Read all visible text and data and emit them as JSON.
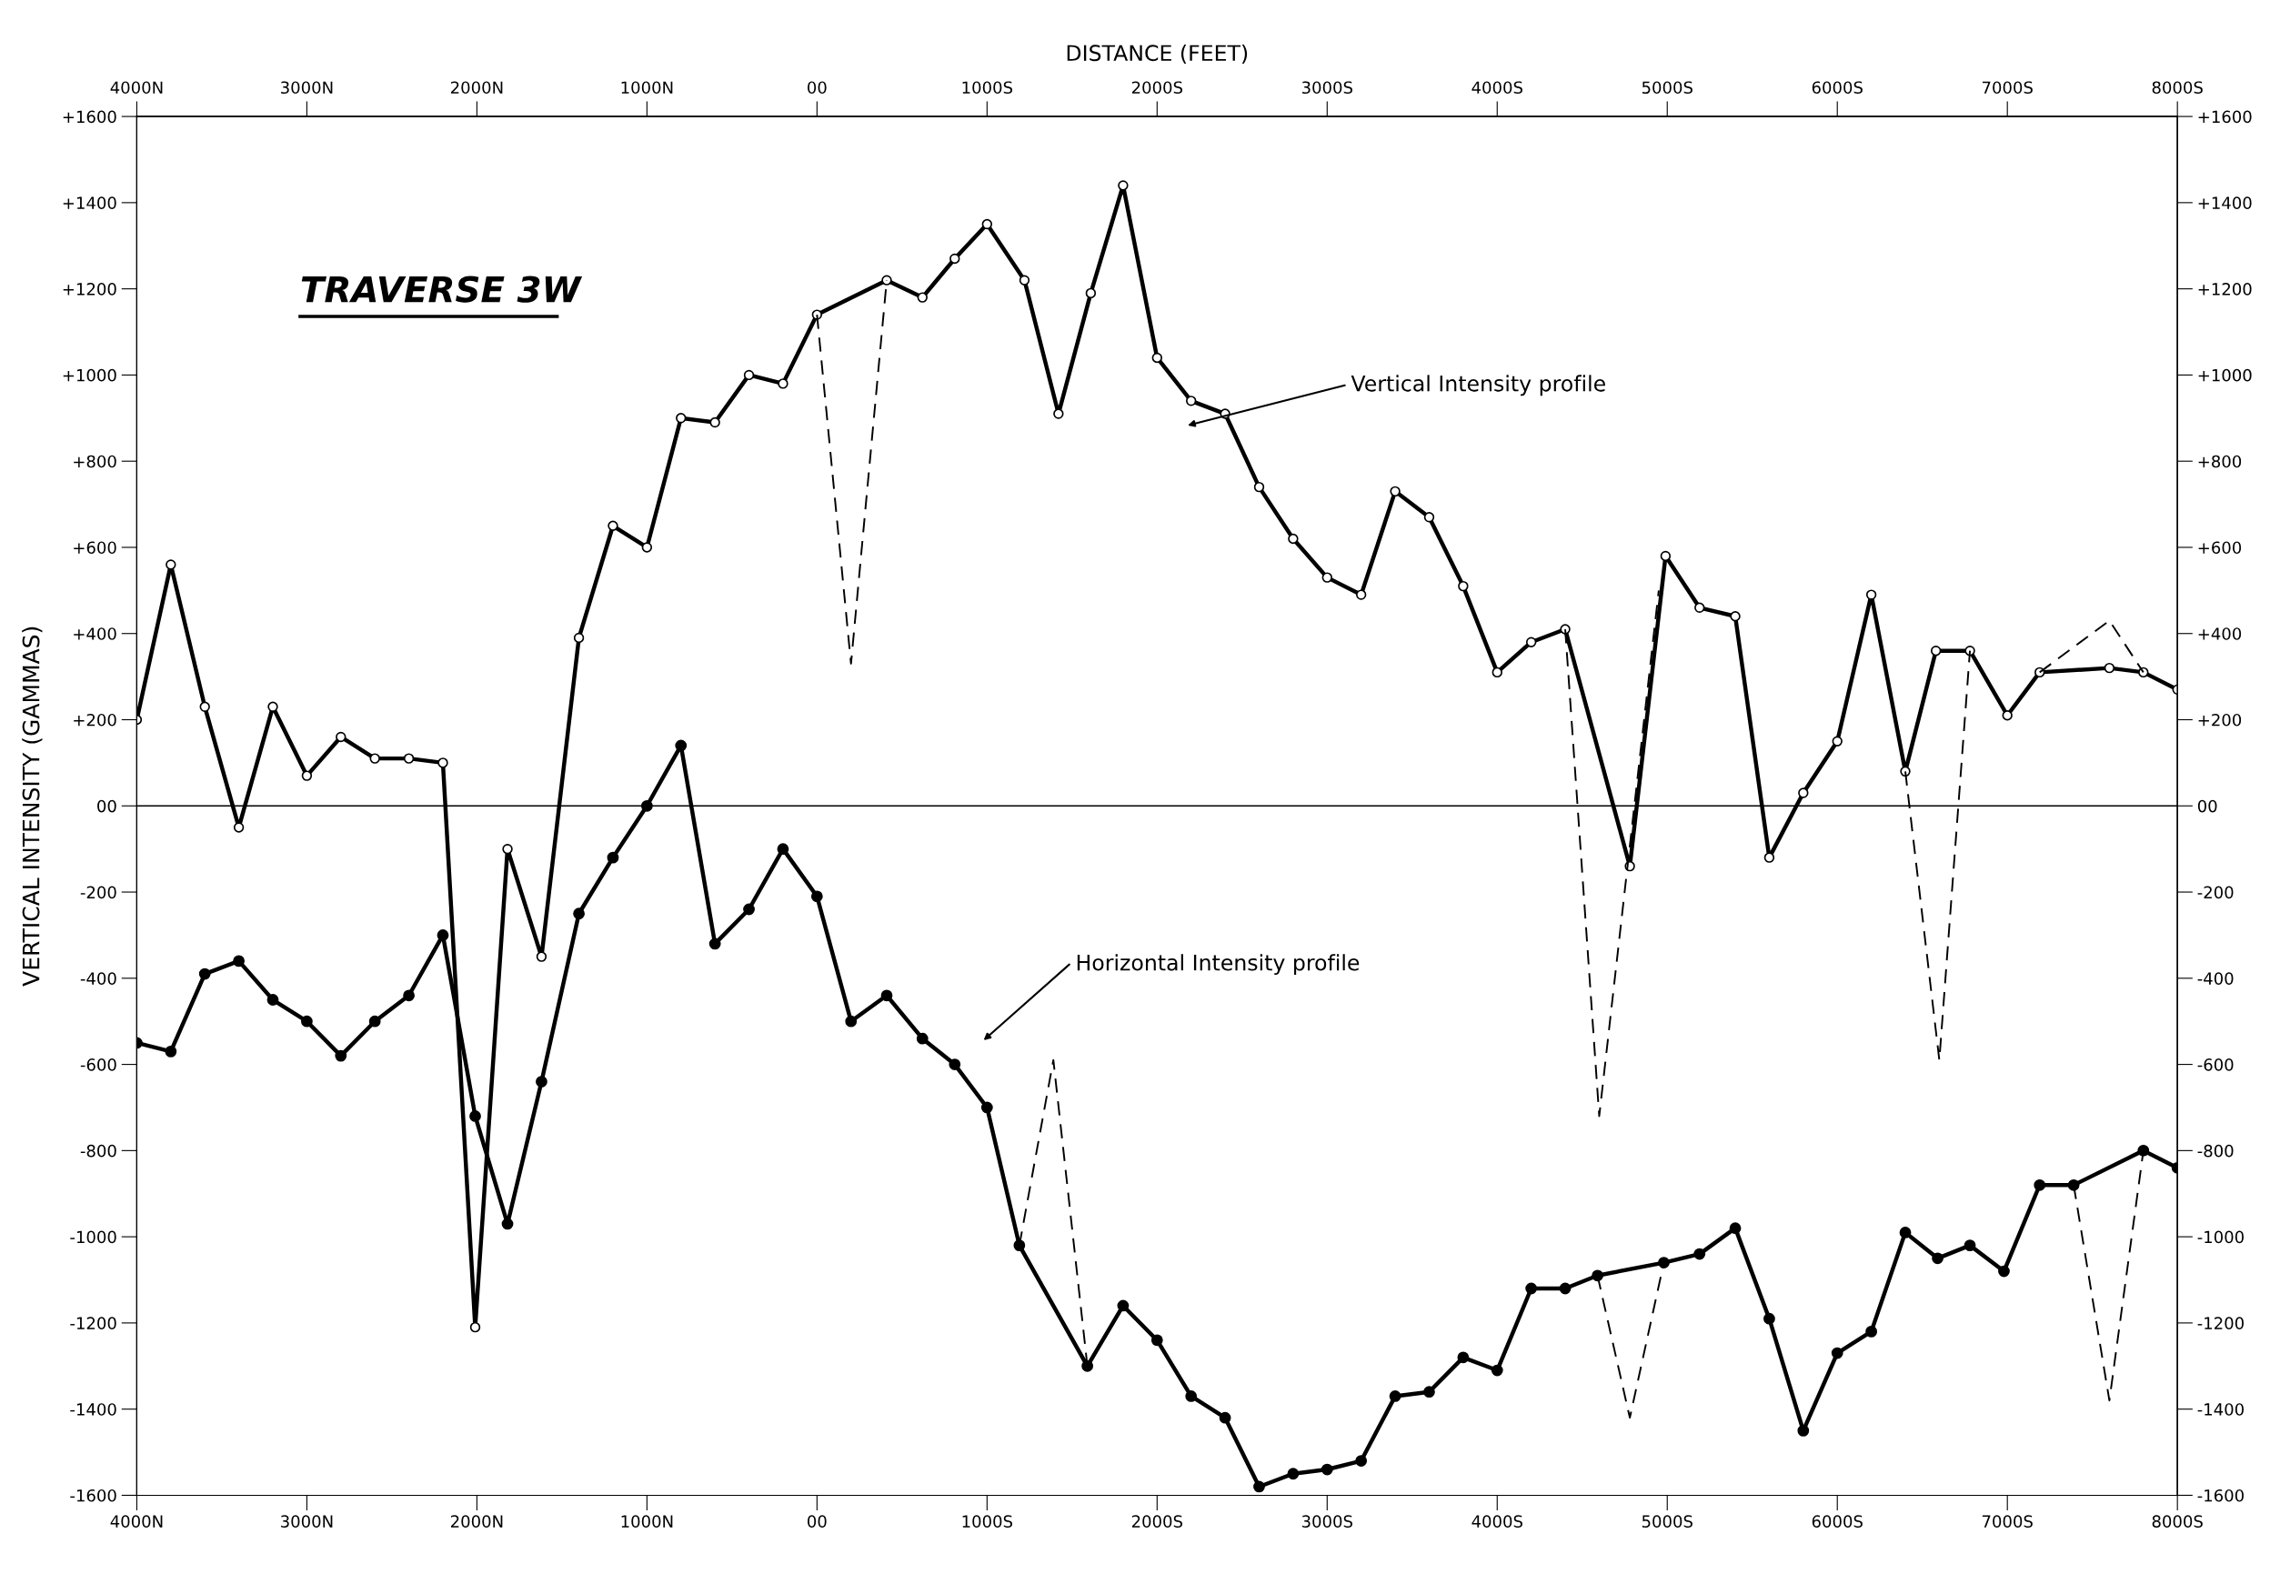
{
  "chart_data": {
    "type": "line",
    "title": "TRAVERSE 3W",
    "x2label": "DISTANCE (FEET)",
    "ylabel": "VERTICAL INTENSITY (GAMMAS)",
    "xlim": [
      -4000,
      8000
    ],
    "xticks": [
      {
        "value": -4000,
        "label": "4000N"
      },
      {
        "value": -3000,
        "label": "3000N"
      },
      {
        "value": -2000,
        "label": "2000N"
      },
      {
        "value": -1000,
        "label": "1000N"
      },
      {
        "value": 0,
        "label": "00"
      },
      {
        "value": 1000,
        "label": "1000S"
      },
      {
        "value": 2000,
        "label": "2000S"
      },
      {
        "value": 3000,
        "label": "3000S"
      },
      {
        "value": 4000,
        "label": "4000S"
      },
      {
        "value": 5000,
        "label": "5000S"
      },
      {
        "value": 6000,
        "label": "6000S"
      },
      {
        "value": 7000,
        "label": "7000S"
      },
      {
        "value": 8000,
        "label": "8000S"
      }
    ],
    "x2lim": [
      -4000,
      8000
    ],
    "x2ticks": [
      {
        "value": -4000,
        "label": "4000N"
      },
      {
        "value": -3000,
        "label": "3000N"
      },
      {
        "value": -2000,
        "label": "2000N"
      },
      {
        "value": -1000,
        "label": "1000N"
      },
      {
        "value": 0,
        "label": "00"
      },
      {
        "value": 1000,
        "label": "1000S"
      },
      {
        "value": 2000,
        "label": "2000S"
      },
      {
        "value": 3000,
        "label": "3000S"
      },
      {
        "value": 4000,
        "label": "4000S"
      },
      {
        "value": 5000,
        "label": "5000S"
      },
      {
        "value": 6000,
        "label": "6000S"
      },
      {
        "value": 7000,
        "label": "7000S"
      },
      {
        "value": 8000,
        "label": "8000S"
      }
    ],
    "ylim": [
      -1600,
      1600
    ],
    "yticks": [
      {
        "value": 1600,
        "label": "+1600"
      },
      {
        "value": 1400,
        "label": "+1400"
      },
      {
        "value": 1200,
        "label": "+1200"
      },
      {
        "value": 1000,
        "label": "+1000"
      },
      {
        "value": 800,
        "label": "+800"
      },
      {
        "value": 600,
        "label": "+600"
      },
      {
        "value": 400,
        "label": "+400"
      },
      {
        "value": 200,
        "label": "+200"
      },
      {
        "value": 0,
        "label": "00"
      },
      -200,
      -400,
      -600,
      -800,
      -1000,
      -1200,
      -1400,
      -1600
    ],
    "y2lim": [
      -1600,
      1600
    ],
    "y2ticks": [
      {
        "value": 1600,
        "label": "+1600"
      },
      {
        "value": 1400,
        "label": "+1400"
      },
      {
        "value": 1200,
        "label": "+1200"
      },
      {
        "value": 1000,
        "label": "+1000"
      },
      {
        "value": 800,
        "label": "+800"
      },
      {
        "value": 600,
        "label": "+600"
      },
      {
        "value": 400,
        "label": "+400"
      },
      {
        "value": 200,
        "label": "+200"
      },
      {
        "value": 0,
        "label": "00"
      },
      -200,
      -400,
      -600,
      -800,
      -1000,
      -1200,
      -1400,
      -1600
    ],
    "ref_lines": [
      {
        "axis": "y",
        "value": 0,
        "label": null,
        "color": "#000000"
      }
    ],
    "grid": false,
    "annotations": [
      "Vertical Intensity profile",
      "Horizontal Intensity profile"
    ],
    "series": [
      {
        "color": "#000000",
        "marker": "circle",
        "line_style": "solid",
        "x": [
          -4000,
          -3800,
          -3600,
          -3400,
          -3200,
          -3000,
          -2800,
          -2600,
          -2400,
          -2200,
          -2010,
          -1820,
          -1620,
          -1400,
          -1200,
          -1000,
          -800,
          -600,
          -400,
          -200,
          0,
          410,
          620,
          810,
          1000,
          1220,
          1420,
          1610,
          1800,
          2000,
          2200,
          2400,
          2600,
          2800,
          3000,
          3200,
          3400,
          3600,
          3800,
          4000,
          4200,
          4400,
          4780,
          4990,
          5190,
          5400,
          5600,
          5800,
          6000,
          6200,
          6400,
          6580,
          6780,
          7000,
          7190,
          7600,
          7800,
          8000
        ],
        "values": [
          200,
          560,
          230,
          -50,
          230,
          70,
          160,
          110,
          110,
          100,
          -1210,
          -100,
          -350,
          390,
          650,
          600,
          900,
          890,
          1000,
          980,
          1140,
          1220,
          1180,
          1270,
          1350,
          1220,
          910,
          1190,
          1440,
          1040,
          940,
          910,
          740,
          620,
          530,
          490,
          730,
          670,
          510,
          310,
          380,
          410,
          -140,
          580,
          460,
          440,
          -120,
          30,
          150,
          490,
          80,
          360,
          360,
          210,
          310,
          320,
          310,
          270
        ]
      },
      {
        "color": "#000000",
        "marker": "none",
        "line_style": "dashed",
        "x": [
          0,
          200,
          410
        ],
        "values": [
          1140,
          330,
          1220
        ]
      },
      {
        "color": "#000000",
        "marker": "none",
        "line_style": "dashed",
        "x": [
          4400,
          4600,
          4950
        ],
        "values": [
          410,
          -720,
          500
        ]
      },
      {
        "color": "#000000",
        "marker": "none",
        "line_style": "dashed",
        "x": [
          6400,
          6600,
          6780
        ],
        "values": [
          80,
          -590,
          360
        ]
      },
      {
        "color": "#000000",
        "marker": "none",
        "line_style": "dashed",
        "x": [
          7190,
          7600,
          7800
        ],
        "values": [
          310,
          430,
          310
        ]
      },
      {
        "color": "#000000",
        "marker": "circle",
        "line_style": "solid",
        "x": [
          -4000,
          -3800,
          -3600,
          -3400,
          -3200,
          -3000,
          -2800,
          -2600,
          -2400,
          -2200,
          -2010,
          -1820,
          -1620,
          -1400,
          -1200,
          -1000,
          -800,
          -600,
          -400,
          -200,
          0,
          200,
          410,
          620,
          810,
          1000,
          1190,
          1590,
          1800,
          2000,
          2200,
          2400,
          2600,
          2800,
          3000,
          3200,
          3400,
          3600,
          3800,
          4000,
          4200,
          4400,
          4590,
          4980,
          5190,
          5400,
          5600,
          5800,
          6000,
          6200,
          6400,
          6590,
          6780,
          6980,
          7190,
          7390,
          7800,
          8000
        ],
        "values": [
          -550,
          -570,
          -390,
          -360,
          -450,
          -500,
          -580,
          -500,
          -440,
          -300,
          -720,
          -970,
          -640,
          -250,
          -120,
          0,
          140,
          -320,
          -240,
          -100,
          -210,
          -500,
          -440,
          -540,
          -600,
          -700,
          -1020,
          -1300,
          -1160,
          -1240,
          -1370,
          -1420,
          -1580,
          -1550,
          -1540,
          -1520,
          -1370,
          -1360,
          -1280,
          -1310,
          -1120,
          -1120,
          -1090,
          -1060,
          -1040,
          -980,
          -1190,
          -1450,
          -1270,
          -1220,
          -990,
          -1050,
          -1020,
          -1080,
          -880,
          -880,
          -800,
          -840
        ]
      },
      {
        "color": "#000000",
        "marker": "none",
        "line_style": "dashed",
        "x": [
          1190,
          1390,
          1590
        ],
        "values": [
          -1020,
          -590,
          -1300
        ]
      },
      {
        "color": "#000000",
        "marker": "none",
        "line_style": "dashed",
        "x": [
          4590,
          4780,
          4980
        ],
        "values": [
          -1090,
          -1420,
          -1060
        ]
      },
      {
        "color": "#000000",
        "marker": "none",
        "line_style": "dashed",
        "x": [
          7390,
          7600,
          7800
        ],
        "values": [
          -880,
          -1380,
          -800
        ]
      }
    ]
  }
}
